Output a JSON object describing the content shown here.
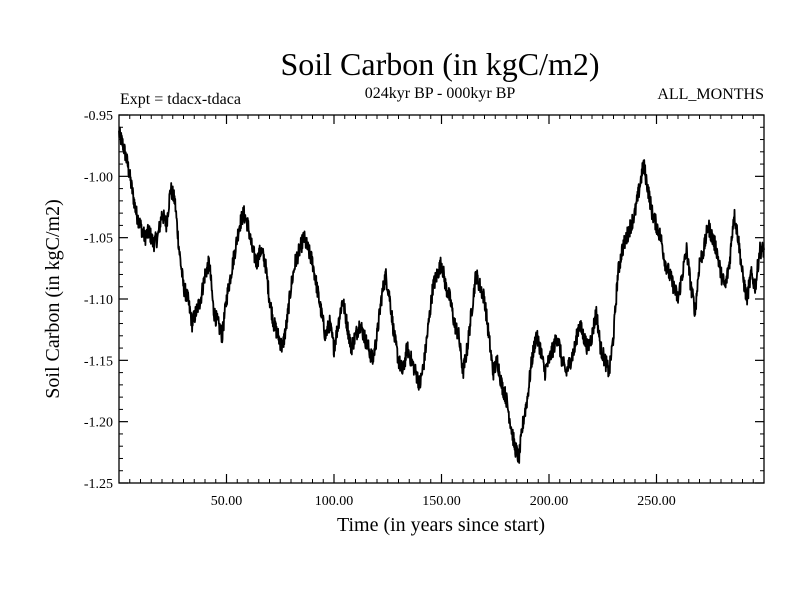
{
  "chart_data": {
    "type": "line",
    "title": "Soil Carbon (in kgC/m2)",
    "subtitle": "024kyr BP - 000kyr BP",
    "annotation_left": "Expt = tdacx-tdaca",
    "annotation_right": "ALL_MONTHS",
    "xlabel": "Time (in years since start)",
    "ylabel": "Soil Carbon (in kgC/m2)",
    "xlim": [
      0,
      300
    ],
    "ylim": [
      -1.25,
      -0.95
    ],
    "x_ticks": [
      50,
      100,
      150,
      200,
      250
    ],
    "x_tick_labels": [
      "50.00",
      "100.00",
      "150.00",
      "200.00",
      "250.00"
    ],
    "y_ticks": [
      -0.95,
      -1.0,
      -1.05,
      -1.1,
      -1.15,
      -1.2,
      -1.25
    ],
    "y_tick_labels": [
      "-0.95",
      "-1.00",
      "-1.05",
      "-1.10",
      "-1.15",
      "-1.20",
      "-1.25"
    ],
    "series": [
      {
        "name": "Soil Carbon",
        "color": "#000000",
        "x": [
          0,
          2,
          4,
          6,
          8,
          10,
          12,
          14,
          16,
          18,
          20,
          22,
          24,
          26,
          28,
          30,
          32,
          34,
          36,
          38,
          40,
          42,
          44,
          46,
          48,
          50,
          52,
          54,
          56,
          58,
          60,
          62,
          64,
          66,
          68,
          70,
          72,
          74,
          76,
          78,
          80,
          82,
          84,
          86,
          88,
          90,
          92,
          94,
          96,
          98,
          100,
          102,
          104,
          106,
          108,
          110,
          112,
          114,
          116,
          118,
          120,
          122,
          124,
          126,
          128,
          130,
          132,
          134,
          136,
          138,
          140,
          142,
          144,
          146,
          148,
          150,
          152,
          154,
          156,
          158,
          160,
          162,
          164,
          166,
          168,
          170,
          172,
          174,
          176,
          178,
          180,
          182,
          184,
          186,
          188,
          190,
          192,
          194,
          196,
          198,
          200,
          202,
          204,
          206,
          208,
          210,
          212,
          214,
          216,
          218,
          220,
          222,
          224,
          226,
          228,
          230,
          232,
          234,
          236,
          238,
          240,
          242,
          244,
          246,
          248,
          250,
          252,
          254,
          256,
          258,
          260,
          262,
          264,
          266,
          268,
          270,
          272,
          274,
          276,
          278,
          280,
          282,
          284,
          286,
          288,
          290,
          292,
          294,
          296,
          298,
          300
        ],
        "values": [
          -0.965,
          -0.975,
          -0.99,
          -1.01,
          -1.03,
          -1.04,
          -1.05,
          -1.045,
          -1.055,
          -1.05,
          -1.03,
          -1.04,
          -1.01,
          -1.02,
          -1.06,
          -1.09,
          -1.1,
          -1.12,
          -1.11,
          -1.1,
          -1.08,
          -1.07,
          -1.11,
          -1.12,
          -1.13,
          -1.1,
          -1.08,
          -1.06,
          -1.04,
          -1.03,
          -1.04,
          -1.06,
          -1.07,
          -1.06,
          -1.07,
          -1.1,
          -1.12,
          -1.13,
          -1.14,
          -1.12,
          -1.09,
          -1.07,
          -1.06,
          -1.05,
          -1.06,
          -1.07,
          -1.09,
          -1.11,
          -1.13,
          -1.12,
          -1.14,
          -1.12,
          -1.1,
          -1.12,
          -1.14,
          -1.13,
          -1.12,
          -1.13,
          -1.14,
          -1.15,
          -1.13,
          -1.1,
          -1.08,
          -1.1,
          -1.13,
          -1.15,
          -1.16,
          -1.14,
          -1.15,
          -1.16,
          -1.17,
          -1.15,
          -1.12,
          -1.09,
          -1.08,
          -1.07,
          -1.09,
          -1.1,
          -1.12,
          -1.13,
          -1.16,
          -1.14,
          -1.11,
          -1.08,
          -1.09,
          -1.1,
          -1.13,
          -1.16,
          -1.15,
          -1.17,
          -1.18,
          -1.2,
          -1.22,
          -1.23,
          -1.2,
          -1.18,
          -1.15,
          -1.13,
          -1.14,
          -1.16,
          -1.15,
          -1.14,
          -1.13,
          -1.15,
          -1.16,
          -1.15,
          -1.14,
          -1.12,
          -1.13,
          -1.14,
          -1.13,
          -1.11,
          -1.14,
          -1.15,
          -1.16,
          -1.13,
          -1.08,
          -1.06,
          -1.05,
          -1.04,
          -1.03,
          -1.01,
          -0.99,
          -1.01,
          -1.03,
          -1.04,
          -1.05,
          -1.07,
          -1.08,
          -1.09,
          -1.1,
          -1.08,
          -1.06,
          -1.09,
          -1.11,
          -1.07,
          -1.06,
          -1.04,
          -1.05,
          -1.06,
          -1.08,
          -1.09,
          -1.07,
          -1.03,
          -1.05,
          -1.08,
          -1.1,
          -1.08,
          -1.09,
          -1.06,
          -1.06
        ]
      }
    ],
    "grid": false
  }
}
